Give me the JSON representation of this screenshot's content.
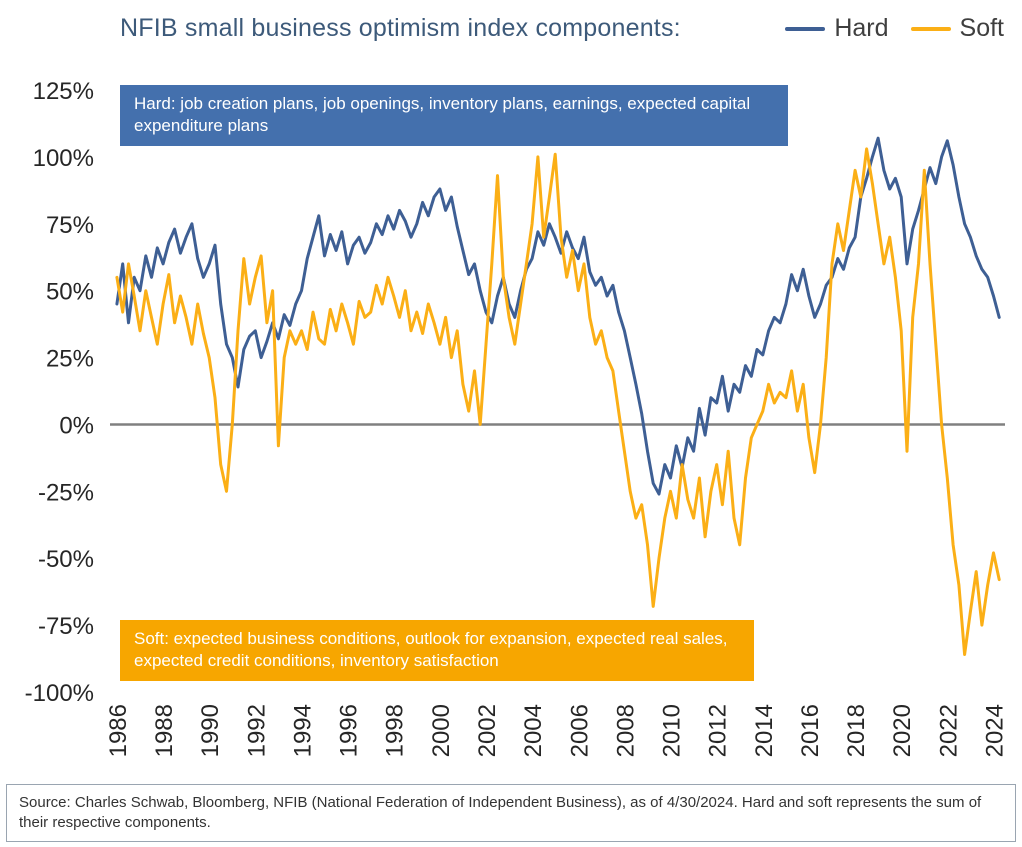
{
  "header": {
    "title": "NFIB small business optimism index components:"
  },
  "annotations": {
    "hard": "Hard: job creation plans, job openings, inventory plans, earnings, expected capital expenditure plans",
    "soft": "Soft: expected business conditions, outlook for expansion, expected real sales, expected credit conditions, inventory satisfaction"
  },
  "footer": {
    "source": "Source: Charles Schwab, Bloomberg, NFIB (National Federation of Independent Business), as of 4/30/2024.  Hard and soft represents the sum of their respective components."
  },
  "chart_data": {
    "type": "line",
    "title": "NFIB small business optimism index components",
    "x_start": 1986,
    "x_step": 0.25,
    "xlim": [
      1985.7,
      2024.5
    ],
    "ylim": [
      -100,
      125
    ],
    "yticks": [
      125,
      100,
      75,
      50,
      25,
      0,
      -25,
      -50,
      -75,
      -100
    ],
    "ytick_suffix": "%",
    "xticks": [
      1986,
      1988,
      1990,
      1992,
      1994,
      1996,
      1998,
      2000,
      2002,
      2004,
      2006,
      2008,
      2010,
      2012,
      2014,
      2016,
      2018,
      2020,
      2022,
      2024
    ],
    "zero_line": true,
    "grid": false,
    "legend_position": "top-right",
    "series": [
      {
        "name": "Hard",
        "color": "#3e5f94",
        "values": [
          45,
          60,
          38,
          55,
          50,
          63,
          55,
          66,
          60,
          68,
          73,
          64,
          70,
          75,
          62,
          55,
          60,
          67,
          45,
          30,
          25,
          14,
          28,
          33,
          35,
          25,
          31,
          38,
          32,
          41,
          37,
          45,
          50,
          62,
          70,
          78,
          63,
          71,
          65,
          72,
          60,
          67,
          70,
          64,
          68,
          75,
          71,
          78,
          73,
          80,
          76,
          70,
          75,
          83,
          78,
          85,
          88,
          80,
          85,
          74,
          65,
          56,
          60,
          50,
          42,
          38,
          48,
          55,
          45,
          40,
          50,
          58,
          62,
          72,
          67,
          75,
          70,
          64,
          72,
          66,
          62,
          70,
          57,
          52,
          55,
          48,
          52,
          42,
          35,
          25,
          15,
          4,
          -10,
          -22,
          -26,
          -15,
          -20,
          -8,
          -16,
          -5,
          -10,
          6,
          -4,
          10,
          8,
          18,
          5,
          15,
          12,
          22,
          18,
          28,
          26,
          35,
          40,
          38,
          45,
          56,
          50,
          58,
          48,
          40,
          45,
          52,
          55,
          62,
          58,
          66,
          70,
          85,
          92,
          100,
          107,
          95,
          88,
          92,
          85,
          60,
          73,
          80,
          88,
          96,
          90,
          100,
          106,
          97,
          85,
          75,
          70,
          63,
          58,
          55,
          48,
          40
        ]
      },
      {
        "name": "Soft",
        "color": "#fbaf16",
        "values": [
          55,
          42,
          60,
          48,
          35,
          50,
          40,
          30,
          45,
          56,
          38,
          48,
          40,
          30,
          45,
          34,
          25,
          10,
          -15,
          -25,
          0,
          35,
          62,
          45,
          55,
          63,
          38,
          50,
          -8,
          25,
          35,
          30,
          35,
          28,
          42,
          32,
          30,
          43,
          35,
          45,
          38,
          30,
          46,
          40,
          42,
          52,
          45,
          55,
          48,
          40,
          50,
          35,
          42,
          34,
          45,
          38,
          30,
          40,
          25,
          35,
          15,
          5,
          20,
          0,
          30,
          60,
          93,
          55,
          40,
          30,
          45,
          60,
          75,
          100,
          70,
          85,
          101,
          70,
          55,
          65,
          50,
          60,
          40,
          30,
          35,
          25,
          20,
          5,
          -10,
          -25,
          -35,
          -30,
          -45,
          -68,
          -50,
          -35,
          -25,
          -35,
          -15,
          -28,
          -35,
          -20,
          -42,
          -25,
          -15,
          -30,
          -10,
          -35,
          -45,
          -20,
          -5,
          0,
          5,
          15,
          8,
          12,
          10,
          20,
          5,
          15,
          -5,
          -18,
          0,
          25,
          60,
          75,
          65,
          80,
          95,
          85,
          103,
          90,
          75,
          60,
          70,
          55,
          35,
          -10,
          40,
          60,
          95,
          60,
          30,
          0,
          -20,
          -45,
          -60,
          -86,
          -70,
          -55,
          -75,
          -60,
          -48,
          -58
        ]
      }
    ]
  }
}
